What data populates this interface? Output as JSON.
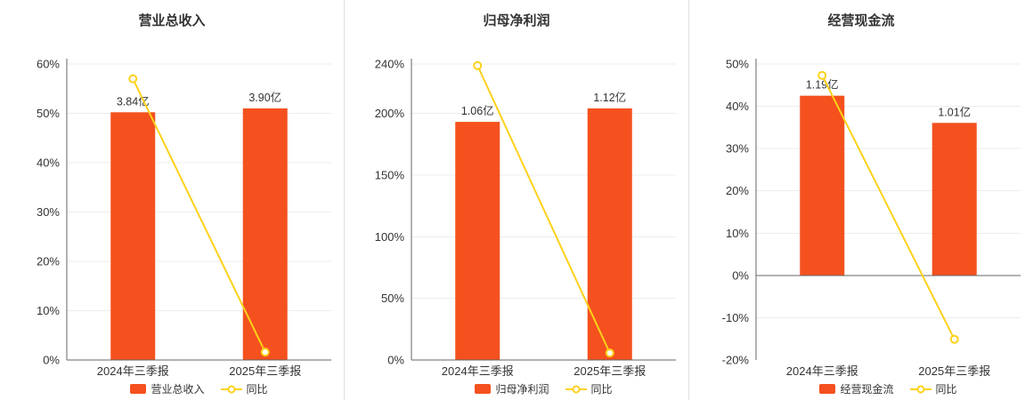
{
  "colors": {
    "bar": "#f4511e",
    "line": "#fdd11a",
    "text": "#333333",
    "axis": "#666666",
    "grid": "#ececec",
    "divider": "#e0e0e0",
    "background": "#ffffff"
  },
  "chart_data": [
    {
      "type": "bar+line",
      "title": "营业总收入",
      "categories": [
        "2024年三季报",
        "2025年三季报"
      ],
      "bar_series": {
        "name": "营业总收入",
        "unit": "亿",
        "values": [
          3.84,
          3.9
        ],
        "labels": [
          "3.84亿",
          "3.90亿"
        ]
      },
      "line_series": {
        "name": "同比",
        "unit": "%",
        "values": [
          57.0,
          1.6
        ]
      },
      "yaxis": {
        "min": 0,
        "max": 60,
        "ticks": [
          0,
          10,
          20,
          30,
          40,
          50,
          60
        ],
        "tick_labels": [
          "0%",
          "10%",
          "20%",
          "30%",
          "40%",
          "50%",
          "60%"
        ]
      },
      "legend": [
        "营业总收入",
        "同比"
      ],
      "legend_position": "bottom",
      "grid": true
    },
    {
      "type": "bar+line",
      "title": "归母净利润",
      "categories": [
        "2024年三季报",
        "2025年三季报"
      ],
      "bar_series": {
        "name": "归母净利润",
        "unit": "亿",
        "values": [
          1.06,
          1.12
        ],
        "labels": [
          "1.06亿",
          "1.12亿"
        ]
      },
      "line_series": {
        "name": "同比",
        "unit": "%",
        "values": [
          238.7,
          5.7
        ]
      },
      "yaxis": {
        "min": 0,
        "max": 240,
        "ticks": [
          0,
          50,
          100,
          150,
          200,
          240
        ],
        "tick_labels": [
          "0%",
          "50%",
          "100%",
          "150%",
          "200%",
          "240%"
        ]
      },
      "legend": [
        "归母净利润",
        "同比"
      ],
      "legend_position": "bottom",
      "grid": true
    },
    {
      "type": "bar+line",
      "title": "经营现金流",
      "categories": [
        "2024年三季报",
        "2025年三季报"
      ],
      "bar_series": {
        "name": "经营现金流",
        "unit": "亿",
        "values": [
          1.19,
          1.01
        ],
        "labels": [
          "1.19亿",
          "1.01亿"
        ]
      },
      "line_series": {
        "name": "同比",
        "unit": "%",
        "values": [
          47.3,
          -15.1
        ]
      },
      "yaxis": {
        "min": -20,
        "max": 50,
        "ticks": [
          -20,
          -10,
          0,
          10,
          20,
          30,
          40,
          50
        ],
        "tick_labels": [
          "-20%",
          "-10%",
          "0%",
          "10%",
          "20%",
          "30%",
          "40%",
          "50%"
        ]
      },
      "legend": [
        "经营现金流",
        "同比"
      ],
      "legend_position": "bottom",
      "grid": true
    }
  ]
}
